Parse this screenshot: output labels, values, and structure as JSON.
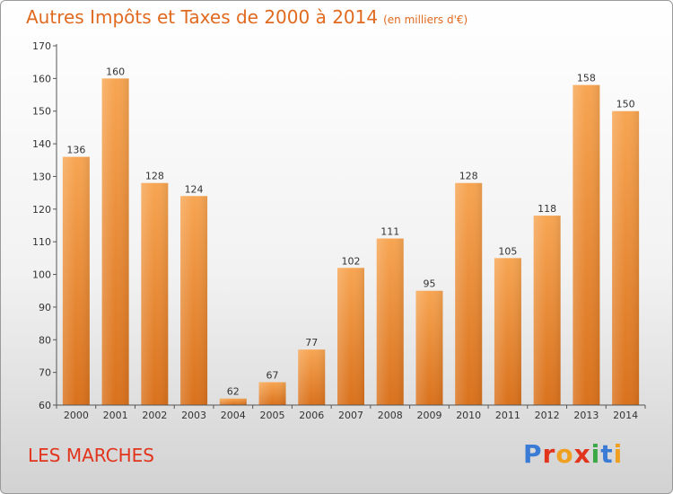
{
  "header": {
    "title": "Autres Impôts et Taxes de 2000 à 2014",
    "subtitle": "(en milliers d'€)"
  },
  "footer": {
    "commune": "LES MARCHES",
    "logo_text": "Proxiti"
  },
  "colors": {
    "title": "#e06a1f",
    "commune": "#e2341d",
    "bar_light": "#f7a552",
    "bar_dark": "#d9711c",
    "logo_letters": [
      "#3a7bd5",
      "#e2341d",
      "#f0a020",
      "#e2341d",
      "#3aa845",
      "#3a7bd5",
      "#f0a020"
    ]
  },
  "chart_data": {
    "type": "bar",
    "categories": [
      "2000",
      "2001",
      "2002",
      "2003",
      "2004",
      "2005",
      "2006",
      "2007",
      "2008",
      "2009",
      "2010",
      "2011",
      "2012",
      "2013",
      "2014"
    ],
    "values": [
      136,
      160,
      128,
      124,
      62,
      67,
      77,
      102,
      111,
      95,
      128,
      105,
      118,
      158,
      150
    ],
    "ylim": [
      60,
      170
    ],
    "yticks": [
      60,
      70,
      80,
      90,
      100,
      110,
      120,
      130,
      140,
      150,
      160,
      170
    ],
    "grid": false,
    "legend": "none"
  }
}
